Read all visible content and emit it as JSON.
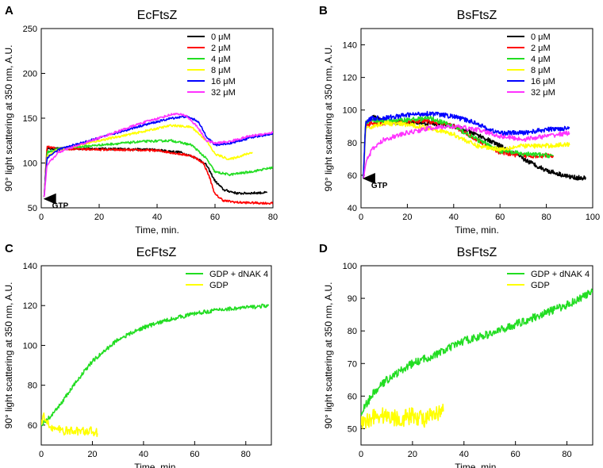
{
  "figure": {
    "type": "multi-panel-chart"
  },
  "chart_data": [
    {
      "id": "A",
      "letter": "A",
      "type": "line",
      "title": "EcFtsZ",
      "xlabel": "Time, min.",
      "ylabel": "90° light scattering at 350 nm, A.U.",
      "xlim": [
        0,
        80
      ],
      "ylim": [
        50,
        250
      ],
      "xticks": [
        0,
        20,
        40,
        60,
        80
      ],
      "yticks": [
        50,
        100,
        150,
        200,
        250
      ],
      "legend_position": "top-right",
      "annotation": {
        "text": "GTP",
        "x": 1,
        "y": 60
      },
      "noise": 1.2,
      "series": [
        {
          "name": "0 μM",
          "color": "#000000",
          "x": [
            1,
            2,
            6,
            20,
            38,
            48,
            54,
            57,
            60,
            63,
            68,
            78
          ],
          "y": [
            62,
            116,
            116,
            116,
            115,
            112,
            105,
            98,
            80,
            70,
            66,
            67
          ]
        },
        {
          "name": "2 μM",
          "color": "#ff0000",
          "x": [
            1,
            2,
            6,
            20,
            40,
            52,
            56,
            58,
            60,
            63,
            68,
            80
          ],
          "y": [
            62,
            118,
            116,
            115,
            114,
            108,
            100,
            85,
            65,
            58,
            56,
            55
          ]
        },
        {
          "name": "4 μM",
          "color": "#22dd22",
          "x": [
            1,
            2,
            6,
            20,
            35,
            45,
            52,
            57,
            60,
            65,
            72,
            80
          ],
          "y": [
            62,
            112,
            116,
            120,
            124,
            125,
            120,
            105,
            90,
            87,
            90,
            95
          ]
        },
        {
          "name": "8 μM",
          "color": "#ffff00",
          "x": [
            1,
            2,
            6,
            20,
            35,
            45,
            52,
            57,
            60,
            65,
            73
          ],
          "y": [
            62,
            108,
            115,
            125,
            135,
            142,
            140,
            125,
            110,
            104,
            112
          ]
        },
        {
          "name": "16 μM",
          "color": "#0000ff",
          "x": [
            1,
            2,
            6,
            20,
            35,
            45,
            50,
            54,
            57,
            60,
            65,
            72,
            80
          ],
          "y": [
            62,
            106,
            115,
            128,
            142,
            150,
            152,
            147,
            130,
            120,
            122,
            128,
            133
          ]
        },
        {
          "name": "32 μM",
          "color": "#ff33ff",
          "x": [
            1,
            2,
            6,
            20,
            35,
            46,
            50,
            54,
            57,
            60,
            65,
            72,
            80
          ],
          "y": [
            62,
            98,
            112,
            128,
            145,
            155,
            153,
            140,
            125,
            122,
            124,
            130,
            134
          ]
        }
      ]
    },
    {
      "id": "B",
      "letter": "B",
      "type": "line",
      "title": "BsFtsZ",
      "xlabel": "Time, min.",
      "ylabel": "90° light scattering at 350 nm, A.U.",
      "xlim": [
        0,
        100
      ],
      "ylim": [
        40,
        150
      ],
      "xticks": [
        0,
        20,
        40,
        60,
        80,
        100
      ],
      "yticks": [
        40,
        60,
        80,
        100,
        120,
        140
      ],
      "legend_position": "top-right",
      "annotation": {
        "text": "GTP",
        "x": 1,
        "y": 58
      },
      "noise": 1.4,
      "series": [
        {
          "name": "0 μM",
          "color": "#000000",
          "x": [
            1,
            2,
            5,
            10,
            20,
            30,
            40,
            50,
            60,
            70,
            80,
            90,
            97
          ],
          "y": [
            58,
            92,
            96,
            93,
            92,
            92,
            90,
            85,
            78,
            70,
            63,
            59,
            58
          ]
        },
        {
          "name": "2 μM",
          "color": "#ff0000",
          "x": [
            1,
            2,
            5,
            10,
            20,
            30,
            40,
            50,
            60,
            70,
            83
          ],
          "y": [
            58,
            90,
            92,
            92,
            93,
            93,
            90,
            82,
            74,
            72,
            72
          ]
        },
        {
          "name": "4 μM",
          "color": "#22dd22",
          "x": [
            1,
            2,
            5,
            10,
            20,
            30,
            40,
            50,
            60,
            70,
            83
          ],
          "y": [
            58,
            92,
            94,
            93,
            94,
            95,
            90,
            82,
            75,
            73,
            72
          ]
        },
        {
          "name": "8 μM",
          "color": "#ffff00",
          "x": [
            1,
            2,
            5,
            10,
            20,
            30,
            40,
            50,
            60,
            70,
            80,
            90
          ],
          "y": [
            58,
            88,
            90,
            92,
            91,
            89,
            85,
            78,
            76,
            78,
            78,
            79
          ]
        },
        {
          "name": "16 μM",
          "color": "#0000ff",
          "x": [
            1,
            2,
            5,
            10,
            20,
            30,
            40,
            50,
            55,
            60,
            70,
            80,
            90
          ],
          "y": [
            58,
            93,
            95,
            95,
            97,
            98,
            96,
            92,
            88,
            86,
            86,
            88,
            89
          ]
        },
        {
          "name": "32 μM",
          "color": "#ff33ff",
          "x": [
            1,
            2,
            5,
            10,
            20,
            30,
            40,
            50,
            60,
            70,
            80,
            90
          ],
          "y": [
            58,
            68,
            76,
            82,
            86,
            89,
            90,
            88,
            84,
            82,
            84,
            86
          ]
        }
      ]
    },
    {
      "id": "C",
      "letter": "C",
      "type": "line",
      "title": "EcFtsZ",
      "xlabel": "Time, min.",
      "ylabel": "90° light scattering at 350 nm, A.U.",
      "xlim": [
        0,
        90
      ],
      "ylim": [
        50,
        140
      ],
      "xticks": [
        0,
        20,
        40,
        60,
        80
      ],
      "yticks": [
        60,
        80,
        100,
        120,
        140
      ],
      "legend_position": "top-right",
      "noise": 1.0,
      "series": [
        {
          "name": "GDP + dNAK 4",
          "color": "#22dd22",
          "x": [
            0,
            5,
            10,
            15,
            20,
            30,
            40,
            50,
            60,
            70,
            80,
            89
          ],
          "y": [
            60,
            66,
            75,
            84,
            92,
            103,
            109,
            113,
            116,
            118,
            119,
            120
          ]
        },
        {
          "name": "GDP",
          "color": "#ffff00",
          "x": [
            0,
            1,
            2,
            5,
            10,
            15,
            20,
            22
          ],
          "y": [
            60,
            64,
            62,
            58,
            57,
            57,
            57,
            56
          ]
        }
      ]
    },
    {
      "id": "D",
      "letter": "D",
      "type": "line",
      "title": "BsFtsZ",
      "xlabel": "Time, min.",
      "ylabel": "90° light scattering at 350 nm, A.U.",
      "xlim": [
        0,
        90
      ],
      "ylim": [
        45,
        100
      ],
      "xticks": [
        0,
        20,
        40,
        60,
        80
      ],
      "yticks": [
        50,
        60,
        70,
        80,
        90,
        100
      ],
      "legend_position": "top-right",
      "noise": 1.2,
      "series": [
        {
          "name": "GDP + dNAK 4",
          "color": "#22dd22",
          "x": [
            0,
            5,
            10,
            20,
            30,
            40,
            50,
            60,
            70,
            80,
            90
          ],
          "y": [
            55,
            61,
            65,
            70,
            73,
            77,
            79,
            82,
            85,
            88,
            92
          ]
        },
        {
          "name": "GDP",
          "color": "#ffff00",
          "x": [
            0,
            5,
            10,
            15,
            20,
            25,
            32
          ],
          "y": [
            51,
            54,
            54,
            53,
            54,
            53,
            55
          ]
        }
      ]
    }
  ]
}
